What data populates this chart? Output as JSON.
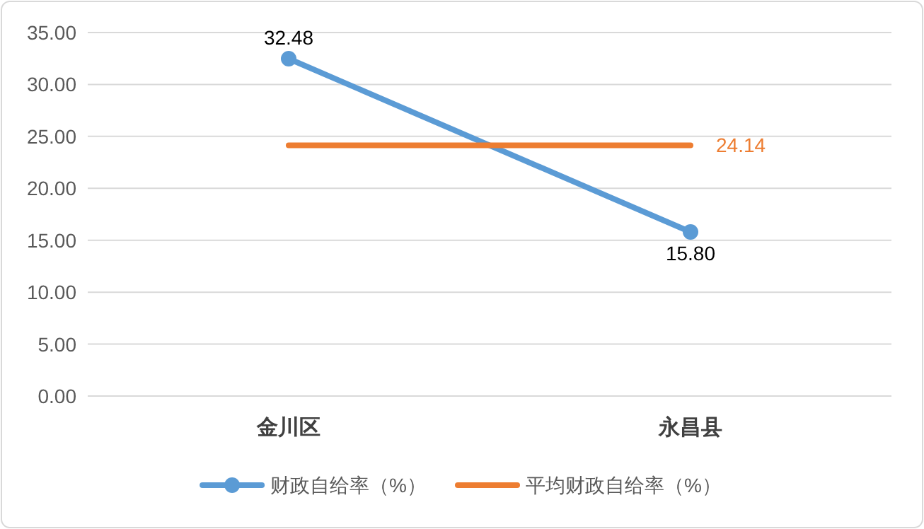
{
  "chart_data": {
    "type": "line",
    "categories": [
      "金川区",
      "永昌县"
    ],
    "series": [
      {
        "name": "财政自给率（%）",
        "color": "#5b9bd5",
        "values": [
          32.48,
          15.8
        ],
        "value_labels": [
          "32.48",
          "15.80"
        ],
        "marker": "circle"
      },
      {
        "name": "平均财政自给率（%）",
        "color": "#ed7d31",
        "values": [
          24.14,
          24.14
        ],
        "value_labels": [
          null,
          "24.14"
        ],
        "marker": "none"
      }
    ],
    "ylim": [
      0,
      35
    ],
    "yticks": [
      {
        "value": 0,
        "label": "0.00"
      },
      {
        "value": 5,
        "label": "5.00"
      },
      {
        "value": 10,
        "label": "10.00"
      },
      {
        "value": 15,
        "label": "15.00"
      },
      {
        "value": 20,
        "label": "20.00"
      },
      {
        "value": 25,
        "label": "25.00"
      },
      {
        "value": 30,
        "label": "30.00"
      },
      {
        "value": 35,
        "label": "35.00"
      }
    ],
    "grid": "y",
    "legend": "bottom"
  }
}
